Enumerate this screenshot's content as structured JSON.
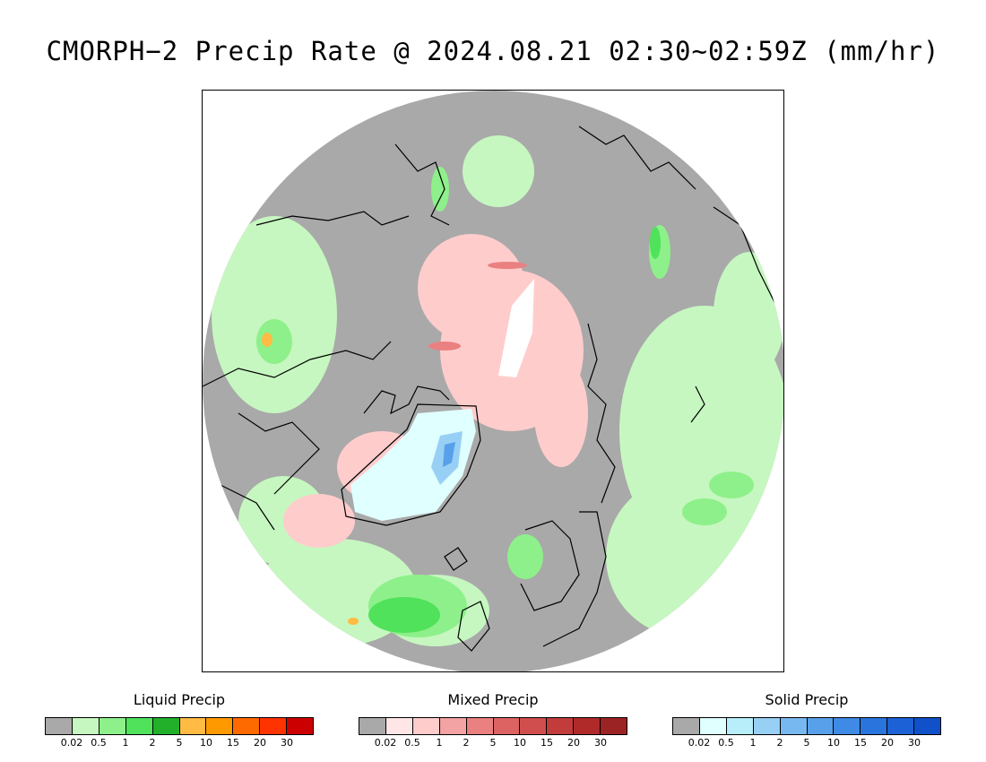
{
  "title": "CMORPH−2 Precip Rate @ 2024.08.21 02:30~02:59Z (mm/hr)",
  "map": {
    "projection": "north-polar-stereographic",
    "background_color": "#a9a9a9",
    "coastline_color": "#000000"
  },
  "legends": [
    {
      "title": "Liquid Precip",
      "colors": [
        "#a9a9a9",
        "#c6f7c0",
        "#8ef08a",
        "#4fe25a",
        "#22b02a",
        "#ffbb44",
        "#ff9900",
        "#ff6a00",
        "#ff3300",
        "#cc0000"
      ],
      "labels": [
        "0.02",
        "0.5",
        "1",
        "2",
        "5",
        "10",
        "15",
        "20",
        "30"
      ]
    },
    {
      "title": "Mixed Precip",
      "colors": [
        "#a9a9a9",
        "#ffe6e6",
        "#ffcccc",
        "#f3a3a3",
        "#ea8080",
        "#dd6363",
        "#d14e4e",
        "#c23c3c",
        "#b02a2a",
        "#9c2323"
      ],
      "labels": [
        "0.02",
        "0.5",
        "1",
        "2",
        "5",
        "10",
        "15",
        "20",
        "30"
      ]
    },
    {
      "title": "Solid Precip",
      "colors": [
        "#a9a9a9",
        "#e0ffff",
        "#b8eefa",
        "#98d0f5",
        "#78b8f0",
        "#58a0ea",
        "#3f8ae5",
        "#2a74de",
        "#1c62d6",
        "#1050c8"
      ],
      "labels": [
        "0.02",
        "0.5",
        "1",
        "2",
        "5",
        "10",
        "15",
        "20",
        "30"
      ]
    }
  ]
}
